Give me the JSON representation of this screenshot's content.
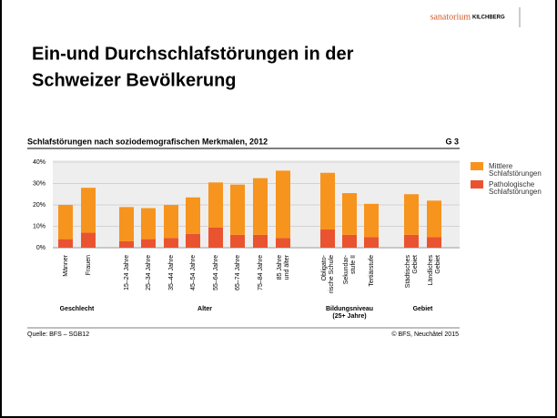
{
  "header": {
    "logo_main": "sanatorium",
    "logo_sub": "KILCHBERG",
    "title_lines": [
      "Ein-und Durchschlafstörungen in der",
      "Schweizer Bevölkerung"
    ]
  },
  "chart_data": {
    "type": "bar",
    "stacked": true,
    "title": "Schlafstörungen nach soziodemografischen Merkmalen, 2012",
    "figure_label": "G 3",
    "categories": [
      [
        "Männer"
      ],
      [
        "Frauen"
      ],
      [
        "15–24 Jahre"
      ],
      [
        "25–34 Jahre"
      ],
      [
        "35–44 Jahre"
      ],
      [
        "45–54 Jahre"
      ],
      [
        "55–64 Jahre"
      ],
      [
        "65–74 Jahre"
      ],
      [
        "75–84 Jahre"
      ],
      [
        "85 Jahre",
        "und älter"
      ],
      [
        "Obligato-",
        "rische Schule"
      ],
      [
        "Sekundar-",
        "stufe II"
      ],
      [
        "Tertiärstufe"
      ],
      [
        "Städtisches",
        "Gebiet"
      ],
      [
        "Ländliches",
        "Gebiet"
      ]
    ],
    "groups": [
      {
        "label": [
          "Geschlecht"
        ],
        "start": 0,
        "end": 1
      },
      {
        "label": [
          "Alter"
        ],
        "start": 2,
        "end": 9
      },
      {
        "label": [
          "Bildungsniveau",
          "(25+ Jahre)"
        ],
        "start": 10,
        "end": 12
      },
      {
        "label": [
          "Gebiet"
        ],
        "start": 13,
        "end": 14
      }
    ],
    "series": [
      {
        "name": "Pathologische Schlafstörungen",
        "color": "#ea5330",
        "values": [
          4,
          7,
          3,
          4,
          4.5,
          6.5,
          9.5,
          6,
          6,
          4.5,
          8.5,
          6,
          5,
          6,
          5
        ]
      },
      {
        "name": "Mittlere Schlafstörungen",
        "color": "#f7941d",
        "values": [
          16,
          21,
          16,
          14.5,
          15.5,
          17,
          21,
          23.5,
          26.5,
          31.5,
          26.5,
          19.5,
          15.5,
          19,
          17
        ]
      }
    ],
    "ylim": [
      0,
      40
    ],
    "yticks": [
      {
        "value": 0,
        "label": "0%"
      },
      {
        "value": 10,
        "label": "10%"
      },
      {
        "value": 20,
        "label": "20%"
      },
      {
        "value": 30,
        "label": "30%"
      },
      {
        "value": 40,
        "label": "40%"
      }
    ],
    "grid": true,
    "legend": "right",
    "source": "Quelle: BFS – SGB12",
    "copyright": "© BFS, Neuchâtel 2015"
  }
}
